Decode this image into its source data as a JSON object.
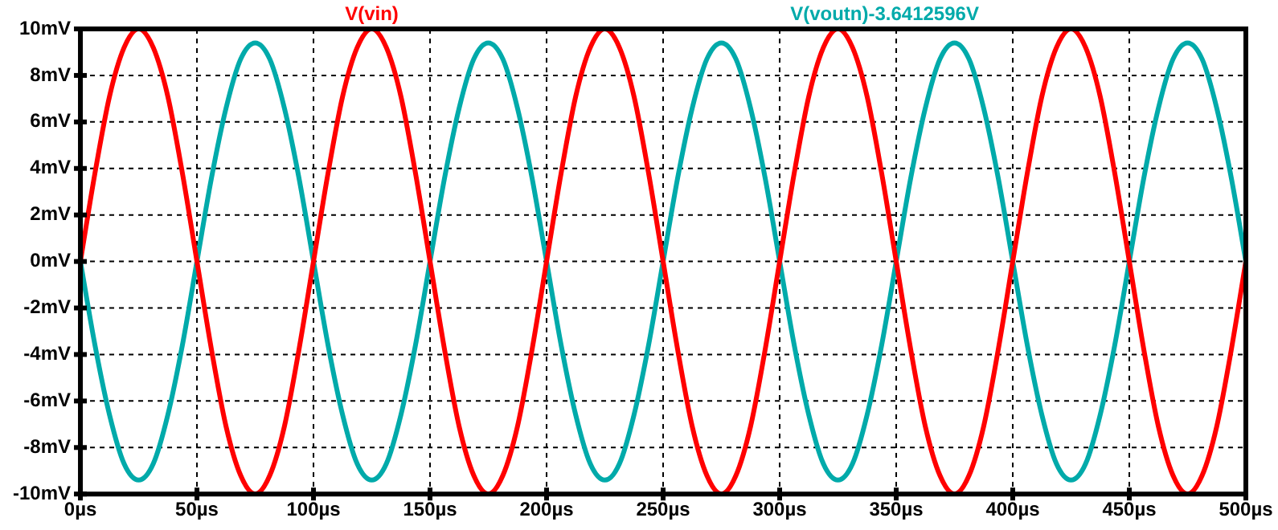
{
  "chart_data": {
    "type": "line",
    "x": [
      0,
      6.25,
      12.5,
      18.75,
      25,
      31.25,
      37.5,
      43.75,
      50,
      56.25,
      62.5,
      68.75,
      75,
      81.25,
      87.5,
      93.75,
      100,
      106.25,
      112.5,
      118.75,
      125,
      131.25,
      137.5,
      143.75,
      150,
      156.25,
      162.5,
      168.75,
      175,
      181.25,
      187.5,
      193.75,
      200,
      206.25,
      212.5,
      218.75,
      225,
      231.25,
      237.5,
      243.75,
      250,
      256.25,
      262.5,
      268.75,
      275,
      281.25,
      287.5,
      293.75,
      300,
      306.25,
      312.5,
      318.75,
      325,
      331.25,
      337.5,
      343.75,
      350,
      356.25,
      362.5,
      368.75,
      375,
      381.25,
      387.5,
      393.75,
      400,
      406.25,
      412.5,
      418.75,
      425,
      431.25,
      437.5,
      443.75,
      450,
      456.25,
      462.5,
      468.75,
      475,
      481.25,
      487.5,
      493.75,
      500
    ],
    "series": [
      {
        "name": "V(vin)",
        "color": "#ff0000",
        "values": [
          0,
          3.8,
          7.1,
          9.2,
          10,
          9.2,
          7.1,
          3.8,
          0,
          -3.8,
          -7.1,
          -9.2,
          -10,
          -9.2,
          -7.1,
          -3.8,
          0,
          3.8,
          7.1,
          9.2,
          10,
          9.2,
          7.1,
          3.8,
          0,
          -3.8,
          -7.1,
          -9.2,
          -10,
          -9.2,
          -7.1,
          -3.8,
          0,
          3.8,
          7.1,
          9.2,
          10,
          9.2,
          7.1,
          3.8,
          0,
          -3.8,
          -7.1,
          -9.2,
          -10,
          -9.2,
          -7.1,
          -3.8,
          0,
          3.8,
          7.1,
          9.2,
          10,
          9.2,
          7.1,
          3.8,
          0,
          -3.8,
          -7.1,
          -9.2,
          -10,
          -9.2,
          -7.1,
          -3.8,
          0,
          3.8,
          7.1,
          9.2,
          10,
          9.2,
          7.1,
          3.8,
          0,
          -3.8,
          -7.1,
          -9.2,
          -10,
          -9.2,
          -7.1,
          -3.8,
          0
        ]
      },
      {
        "name": "V(voutn)-3.6412596V",
        "color": "#00aaaa",
        "values": [
          0,
          -3.6,
          -6.6,
          -8.7,
          -9.4,
          -8.7,
          -6.6,
          -3.6,
          0,
          3.6,
          6.6,
          8.7,
          9.4,
          8.7,
          6.6,
          3.6,
          0,
          -3.6,
          -6.6,
          -8.7,
          -9.4,
          -8.7,
          -6.6,
          -3.6,
          0,
          3.6,
          6.6,
          8.7,
          9.4,
          8.7,
          6.6,
          3.6,
          0,
          -3.6,
          -6.6,
          -8.7,
          -9.4,
          -8.7,
          -6.6,
          -3.6,
          0,
          3.6,
          6.6,
          8.7,
          9.4,
          8.7,
          6.6,
          3.6,
          0,
          -3.6,
          -6.6,
          -8.7,
          -9.4,
          -8.7,
          -6.6,
          -3.6,
          0,
          3.6,
          6.6,
          8.7,
          9.4,
          8.7,
          6.6,
          3.6,
          0,
          -3.6,
          -6.6,
          -8.7,
          -9.4,
          -8.7,
          -6.6,
          -3.6,
          0,
          3.6,
          6.6,
          8.7,
          9.4,
          8.7,
          6.6,
          3.6,
          0
        ]
      }
    ],
    "xlim": [
      0,
      500
    ],
    "xticks": [
      {
        "value": 0,
        "label": "0µs"
      },
      {
        "value": 50,
        "label": "50µs"
      },
      {
        "value": 100,
        "label": "100µs"
      },
      {
        "value": 150,
        "label": "150µs"
      },
      {
        "value": 200,
        "label": "200µs"
      },
      {
        "value": 250,
        "label": "250µs"
      },
      {
        "value": 300,
        "label": "300µs"
      },
      {
        "value": 350,
        "label": "350µs"
      },
      {
        "value": 400,
        "label": "400µs"
      },
      {
        "value": 450,
        "label": "450µs"
      },
      {
        "value": 500,
        "label": "500µs"
      }
    ],
    "ylim": [
      -10,
      10
    ],
    "yticks": [
      {
        "value": -10,
        "label": "-10mV"
      },
      {
        "value": -8,
        "label": "-8mV"
      },
      {
        "value": -6,
        "label": "-6mV"
      },
      {
        "value": -4,
        "label": "-4mV"
      },
      {
        "value": -2,
        "label": "-2mV"
      },
      {
        "value": 0,
        "label": "0mV"
      },
      {
        "value": 2,
        "label": "2mV"
      },
      {
        "value": 4,
        "label": "4mV"
      },
      {
        "value": 6,
        "label": "6mV"
      },
      {
        "value": 8,
        "label": "8mV"
      },
      {
        "value": 10,
        "label": "10mV"
      }
    ],
    "grid": true,
    "marker": "none",
    "line_style": "solid"
  }
}
